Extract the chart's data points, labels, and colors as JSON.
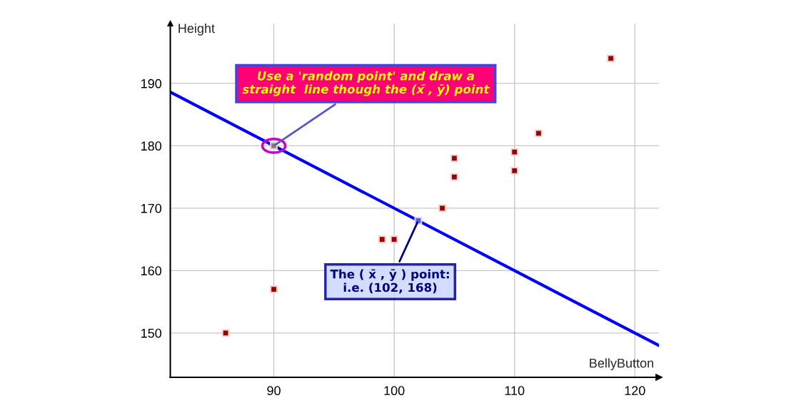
{
  "chart_data": {
    "type": "scatter",
    "xlabel": "BellyButton",
    "ylabel": "Height",
    "xlim": [
      81.4,
      122
    ],
    "ylim": [
      142.9,
      199.6
    ],
    "xticks": [
      90,
      100,
      110,
      120
    ],
    "yticks": [
      150,
      160,
      170,
      180,
      190
    ],
    "grid": true,
    "marker": "square",
    "series": [
      {
        "color": "#990000",
        "x": [
          86,
          90,
          99,
          100,
          104,
          105,
          105,
          110,
          110,
          112,
          118
        ],
        "values": [
          150,
          157,
          165,
          165,
          170,
          178,
          175,
          179,
          176,
          182,
          194
        ]
      },
      {
        "type": "line",
        "color": "#0000ff",
        "marker": "none",
        "x": [
          81.4,
          122
        ],
        "values": [
          188.6,
          148
        ]
      },
      {
        "type": "scatter",
        "color": "#808080",
        "x": [
          90
        ],
        "values": [
          180
        ]
      },
      {
        "type": "scatter",
        "color": "#4060ff",
        "x": [
          102
        ],
        "values": [
          168
        ]
      }
    ],
    "annotations": [
      {
        "text": "Use a 'random point' and draw a\nstraight  line though the (x̄ , ȳ) point",
        "x": 90,
        "y": 180
      },
      {
        "text": "The ( x̄ , ȳ ) point:\ni.e. (102, 168)",
        "x": 102,
        "y": 168
      }
    ]
  }
}
